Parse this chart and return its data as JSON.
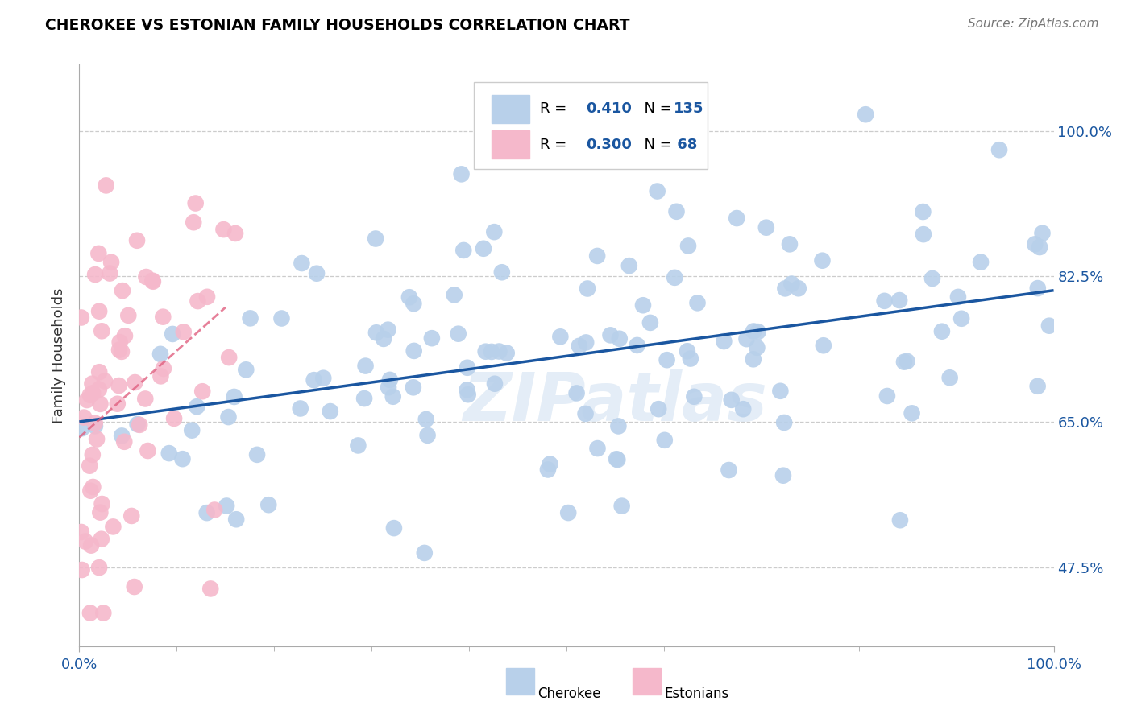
{
  "title": "CHEROKEE VS ESTONIAN FAMILY HOUSEHOLDS CORRELATION CHART",
  "source": "Source: ZipAtlas.com",
  "ylabel": "Family Households",
  "cherokee_R": 0.41,
  "cherokee_N": 135,
  "estonian_R": 0.3,
  "estonian_N": 68,
  "cherokee_color": "#b8d0ea",
  "estonian_color": "#f5b8cb",
  "cherokee_line_color": "#1a56a0",
  "estonian_line_color": "#e06080",
  "background_color": "#ffffff",
  "grid_color": "#cccccc",
  "y_ticks": [
    47.5,
    65.0,
    82.5,
    100.0
  ],
  "xlim": [
    0,
    100
  ],
  "ylim": [
    38,
    108
  ]
}
